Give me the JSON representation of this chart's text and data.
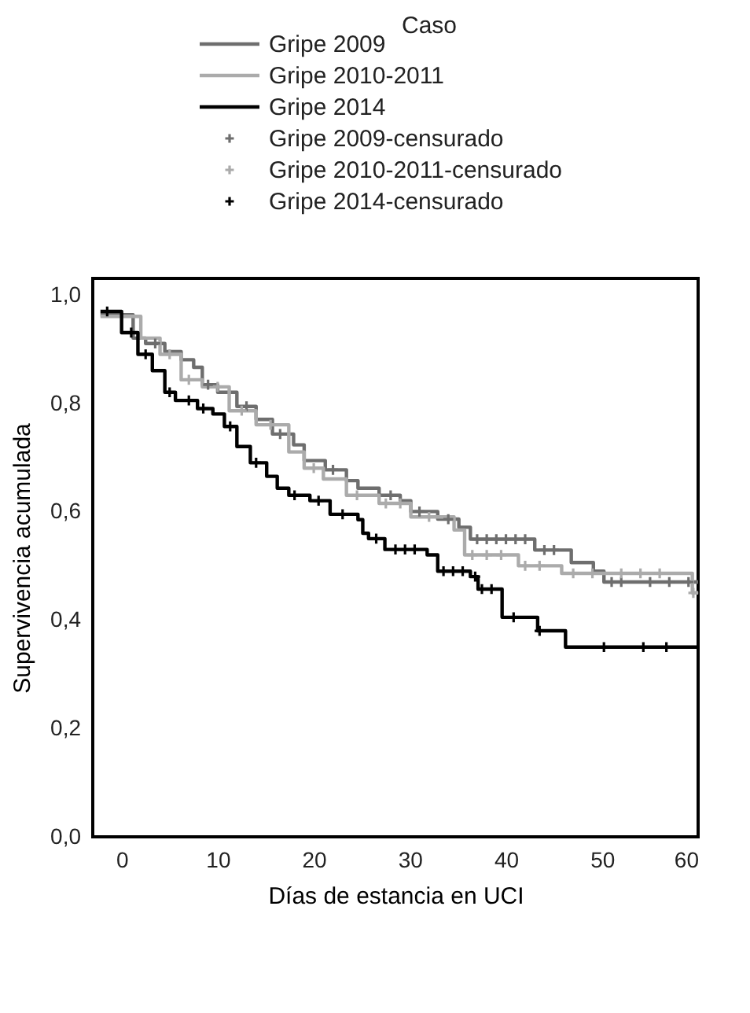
{
  "chart_data": {
    "type": "step",
    "xlabel": "Días de estancia en UCI",
    "ylabel": "Supervivencia acumulada",
    "legend_title": "Caso",
    "legend": "top",
    "grid": false,
    "xlim": [
      -3,
      60
    ],
    "xticks": [
      0,
      10,
      20,
      30,
      40,
      50,
      60
    ],
    "ylim": [
      0,
      1.03
    ],
    "yticks": [
      {
        "value": 0,
        "label": "0,0"
      },
      {
        "value": 0.2,
        "label": "0,2"
      },
      {
        "value": 0.4,
        "label": "0,4"
      },
      {
        "value": 0.6,
        "label": "0,6"
      },
      {
        "value": 0.8,
        "label": "0,8"
      },
      {
        "value": 1,
        "label": "1,0"
      }
    ],
    "series": [
      {
        "name": "Gripe 2009",
        "color": "#6e6e6e",
        "x": [
          -2.2,
          1.2,
          2.5,
          4.5,
          6.2,
          7.5,
          8.4,
          10,
          12,
          14,
          15.7,
          17.9,
          19,
          21.2,
          23.4,
          24.6,
          26.8,
          29,
          30.1,
          32.9,
          35.1,
          36.3,
          43,
          46.8,
          49.1,
          50.2,
          60
        ],
        "values": [
          0.963,
          0.92,
          0.91,
          0.895,
          0.88,
          0.866,
          0.834,
          0.82,
          0.794,
          0.77,
          0.743,
          0.723,
          0.694,
          0.677,
          0.657,
          0.643,
          0.63,
          0.62,
          0.6,
          0.586,
          0.571,
          0.549,
          0.529,
          0.506,
          0.49,
          0.47,
          0.47
        ]
      },
      {
        "name": "Gripe 2010-2011",
        "color": "#ababab",
        "x": [
          -2.2,
          2,
          4,
          6.2,
          8.4,
          11.2,
          14,
          17.4,
          19,
          21,
          23.4,
          26.8,
          30.1,
          34.6,
          35.7,
          41.3,
          45.8,
          59.4,
          60
        ],
        "values": [
          0.96,
          0.92,
          0.89,
          0.843,
          0.83,
          0.786,
          0.76,
          0.71,
          0.68,
          0.66,
          0.63,
          0.615,
          0.59,
          0.566,
          0.52,
          0.5,
          0.486,
          0.45,
          0.45
        ]
      },
      {
        "name": "Gripe 2014",
        "color": "#000000",
        "x": [
          -2.2,
          0,
          1.7,
          3.2,
          4.5,
          5.6,
          7.9,
          9.5,
          10.7,
          12,
          13.4,
          15.1,
          16.2,
          17.4,
          19.6,
          21.7,
          24.6,
          25.1,
          25.7,
          27.4,
          31.8,
          32.9,
          36.3,
          37.1,
          39.6,
          43.3,
          46.2,
          60
        ],
        "values": [
          0.969,
          0.93,
          0.89,
          0.86,
          0.82,
          0.805,
          0.79,
          0.78,
          0.757,
          0.72,
          0.69,
          0.665,
          0.643,
          0.63,
          0.62,
          0.595,
          0.585,
          0.56,
          0.55,
          0.53,
          0.52,
          0.49,
          0.48,
          0.457,
          0.405,
          0.38,
          0.35,
          0.35
        ]
      },
      {
        "name": "Gripe 2009-censurado",
        "type": "scatter",
        "marker": "cross",
        "color": "#6e6e6e",
        "x": [
          3.5,
          9,
          13,
          16.5,
          22,
          28,
          31,
          34,
          37,
          38,
          39,
          40,
          41,
          42,
          44,
          45,
          51,
          52,
          55,
          57,
          59
        ],
        "values": [
          0.91,
          0.834,
          0.794,
          0.743,
          0.677,
          0.63,
          0.6,
          0.586,
          0.549,
          0.549,
          0.549,
          0.549,
          0.549,
          0.549,
          0.529,
          0.529,
          0.47,
          0.47,
          0.47,
          0.47,
          0.47
        ]
      },
      {
        "name": "Gripe 2010-2011-censurado",
        "type": "scatter",
        "marker": "cross",
        "color": "#ababab",
        "x": [
          5,
          7,
          10,
          12.5,
          15.5,
          20,
          24.5,
          27.5,
          29,
          32,
          36.5,
          38,
          39.5,
          42,
          43.5,
          47,
          49,
          52,
          54,
          56,
          59.5
        ],
        "values": [
          0.89,
          0.843,
          0.83,
          0.786,
          0.76,
          0.68,
          0.63,
          0.615,
          0.615,
          0.59,
          0.52,
          0.52,
          0.52,
          0.5,
          0.5,
          0.486,
          0.486,
          0.486,
          0.486,
          0.486,
          0.45
        ]
      },
      {
        "name": "Gripe 2014-censurado",
        "type": "scatter",
        "marker": "cross",
        "color": "#000000",
        "x": [
          -1.5,
          1,
          2.5,
          5,
          7,
          8.5,
          11.3,
          14,
          18,
          20.5,
          23,
          26.5,
          28.5,
          29.5,
          30.5,
          33.5,
          34.5,
          35.5,
          36.8,
          37.5,
          38.5,
          40.8,
          43.5,
          50.2,
          54.3,
          56.7
        ],
        "values": [
          0.969,
          0.93,
          0.89,
          0.82,
          0.805,
          0.79,
          0.757,
          0.69,
          0.63,
          0.62,
          0.595,
          0.55,
          0.53,
          0.53,
          0.53,
          0.49,
          0.49,
          0.49,
          0.48,
          0.457,
          0.457,
          0.405,
          0.38,
          0.35,
          0.35,
          0.35
        ]
      }
    ]
  }
}
